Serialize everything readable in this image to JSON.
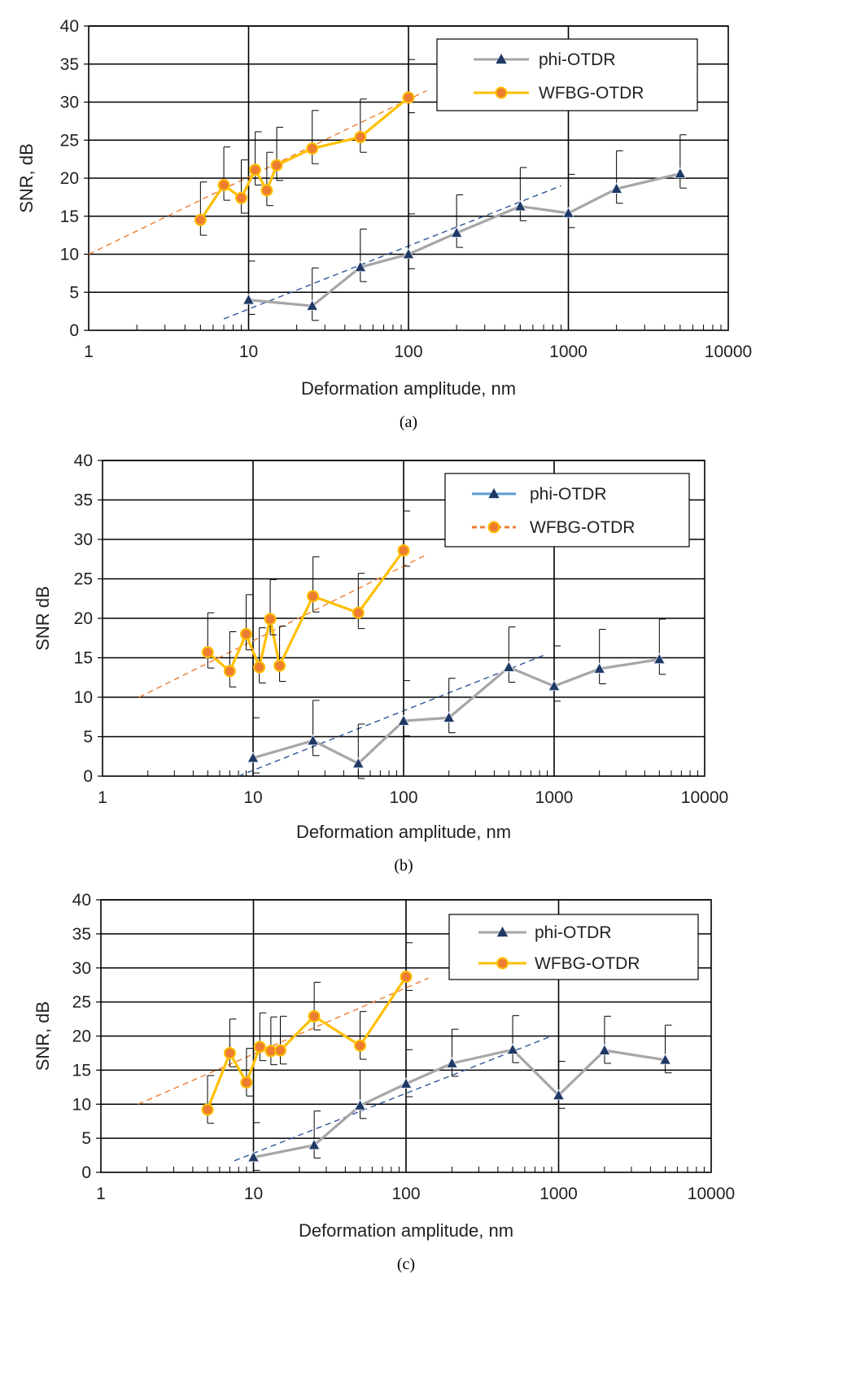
{
  "chart_data": [
    {
      "type": "scatter",
      "caption": "(a)",
      "xlabel": "Deformation amplitude, nm",
      "ylabel": "SNR, dB",
      "x_scale": "log",
      "xlim": [
        1,
        10000
      ],
      "ylim": [
        0,
        40
      ],
      "x_tick_labels": [
        "1",
        "10",
        "100",
        "1000",
        "10000"
      ],
      "y_tick_labels": [
        "0",
        "5",
        "10",
        "15",
        "20",
        "25",
        "30",
        "35",
        "40"
      ],
      "grid": true,
      "legend_position": "top-right",
      "legend": [
        "phi-OTDR",
        "WFBG-OTDR"
      ],
      "series": [
        {
          "name": "phi-OTDR",
          "color": "#a6a6a6",
          "marker": "triangle",
          "marker_color": "#1f3864",
          "x": [
            10,
            25,
            50,
            100,
            200,
            500,
            1000,
            2000,
            5000
          ],
          "y": [
            4.0,
            3.2,
            8.3,
            10.0,
            12.8,
            16.3,
            15.4,
            18.6,
            20.6
          ],
          "error_plus": [
            5.1,
            5.0,
            5.0,
            5.3,
            5.0,
            5.1,
            5.1,
            5.0,
            5.1
          ],
          "error_minus": [
            1.9,
            1.9,
            1.9,
            1.9,
            1.9,
            1.9,
            1.9,
            1.9,
            1.9
          ]
        },
        {
          "name": "WFBG-OTDR",
          "color": "#ffc000",
          "marker": "circle",
          "marker_color": "#ed7d31",
          "x": [
            5,
            7,
            9,
            11,
            13,
            15,
            25,
            50,
            100
          ],
          "y": [
            14.5,
            19.1,
            17.4,
            21.1,
            18.4,
            21.7,
            23.9,
            25.4,
            30.6
          ],
          "error_plus": [
            5.0,
            5.0,
            5.0,
            5.0,
            5.0,
            5.0,
            5.0,
            5.0,
            5.0
          ],
          "error_minus": [
            2.0,
            2.0,
            2.0,
            2.0,
            2.0,
            2.0,
            2.0,
            2.0,
            2.0
          ]
        }
      ],
      "trendlines": [
        {
          "color": "#2f5597",
          "x": [
            7,
            900
          ],
          "y": [
            1.5,
            19.0
          ]
        },
        {
          "color": "#ed7d31",
          "x": [
            1,
            130
          ],
          "y": [
            10.0,
            31.5
          ]
        }
      ]
    },
    {
      "type": "scatter",
      "caption": "(b)",
      "xlabel": "Deformation amplitude, nm",
      "ylabel": "SNR dB",
      "x_scale": "log",
      "xlim": [
        1,
        10000
      ],
      "ylim": [
        0,
        40
      ],
      "x_tick_labels": [
        "1",
        "10",
        "100",
        "1000",
        "10000"
      ],
      "y_tick_labels": [
        "0",
        "5",
        "10",
        "15",
        "20",
        "25",
        "30",
        "35",
        "40"
      ],
      "grid": true,
      "legend_position": "top-right",
      "legend": [
        "phi-OTDR",
        "WFBG-OTDR"
      ],
      "legend_line_colors": [
        "#5b9bd5",
        "#ed7d31"
      ],
      "series": [
        {
          "name": "phi-OTDR",
          "color": "#a6a6a6",
          "marker": "triangle",
          "marker_color": "#1f3864",
          "x": [
            10,
            25,
            50,
            100,
            200,
            500,
            1000,
            2000,
            5000
          ],
          "y": [
            2.3,
            4.5,
            1.6,
            7.0,
            7.4,
            13.8,
            11.4,
            13.6,
            14.8
          ],
          "error_plus": [
            5.1,
            5.1,
            5.0,
            5.1,
            5.0,
            5.1,
            5.1,
            5.0,
            5.1
          ],
          "error_minus": [
            1.9,
            1.9,
            1.9,
            1.9,
            1.9,
            1.9,
            1.9,
            1.9,
            1.9
          ]
        },
        {
          "name": "WFBG-OTDR",
          "color": "#ffc000",
          "marker": "circle",
          "marker_color": "#ed7d31",
          "x": [
            5,
            7,
            9,
            11,
            13,
            15,
            25,
            50,
            100
          ],
          "y": [
            15.7,
            13.3,
            18.0,
            13.8,
            19.9,
            14.0,
            22.8,
            20.7,
            28.6
          ],
          "error_plus": [
            5.0,
            5.0,
            5.0,
            5.0,
            5.0,
            5.0,
            5.0,
            5.0,
            5.0
          ],
          "error_minus": [
            2.0,
            2.0,
            2.0,
            2.0,
            2.0,
            2.0,
            2.0,
            2.0,
            2.0
          ]
        }
      ],
      "trendlines": [
        {
          "color": "#2f5597",
          "x": [
            8,
            850
          ],
          "y": [
            0.0,
            15.3
          ]
        },
        {
          "color": "#ed7d31",
          "x": [
            1.75,
            140
          ],
          "y": [
            10.0,
            28.0
          ]
        }
      ]
    },
    {
      "type": "scatter",
      "caption": "(c)",
      "xlabel": "Deformation amplitude, nm",
      "ylabel": "SNR, dB",
      "x_scale": "log",
      "xlim": [
        1,
        10000
      ],
      "ylim": [
        0,
        40
      ],
      "x_tick_labels": [
        "1",
        "10",
        "100",
        "1000",
        "10000"
      ],
      "y_tick_labels": [
        "0",
        "5",
        "10",
        "15",
        "20",
        "25",
        "30",
        "35",
        "40"
      ],
      "grid": true,
      "legend_position": "top-right",
      "legend": [
        "phi-OTDR",
        "WFBG-OTDR"
      ],
      "series": [
        {
          "name": "phi-OTDR",
          "color": "#a6a6a6",
          "marker": "triangle",
          "marker_color": "#1f3864",
          "x": [
            10,
            25,
            50,
            100,
            200,
            500,
            1000,
            2000,
            5000
          ],
          "y": [
            2.2,
            4.0,
            9.8,
            13.0,
            16.0,
            18.0,
            11.3,
            17.9,
            16.5
          ],
          "error_plus": [
            5.1,
            5.0,
            5.2,
            5.0,
            5.0,
            5.0,
            5.0,
            5.0,
            5.1
          ],
          "error_minus": [
            1.9,
            1.9,
            1.9,
            1.9,
            1.9,
            1.9,
            1.9,
            1.9,
            1.9
          ]
        },
        {
          "name": "WFBG-OTDR",
          "color": "#ffc000",
          "marker": "circle",
          "marker_color": "#ed7d31",
          "x": [
            5,
            7,
            9,
            11,
            13,
            15,
            25,
            50,
            100
          ],
          "y": [
            9.2,
            17.5,
            13.2,
            18.4,
            17.8,
            17.9,
            22.9,
            18.6,
            28.7
          ],
          "error_plus": [
            5.0,
            5.0,
            5.0,
            5.0,
            5.0,
            5.0,
            5.0,
            5.0,
            5.0
          ],
          "error_minus": [
            2.0,
            2.0,
            2.0,
            2.0,
            2.0,
            2.0,
            2.0,
            2.0,
            2.0
          ]
        }
      ],
      "trendlines": [
        {
          "color": "#2f5597",
          "x": [
            7.5,
            900
          ],
          "y": [
            1.7,
            20.0
          ]
        },
        {
          "color": "#ed7d31",
          "x": [
            1.75,
            140
          ],
          "y": [
            10.0,
            28.5
          ]
        }
      ]
    }
  ]
}
